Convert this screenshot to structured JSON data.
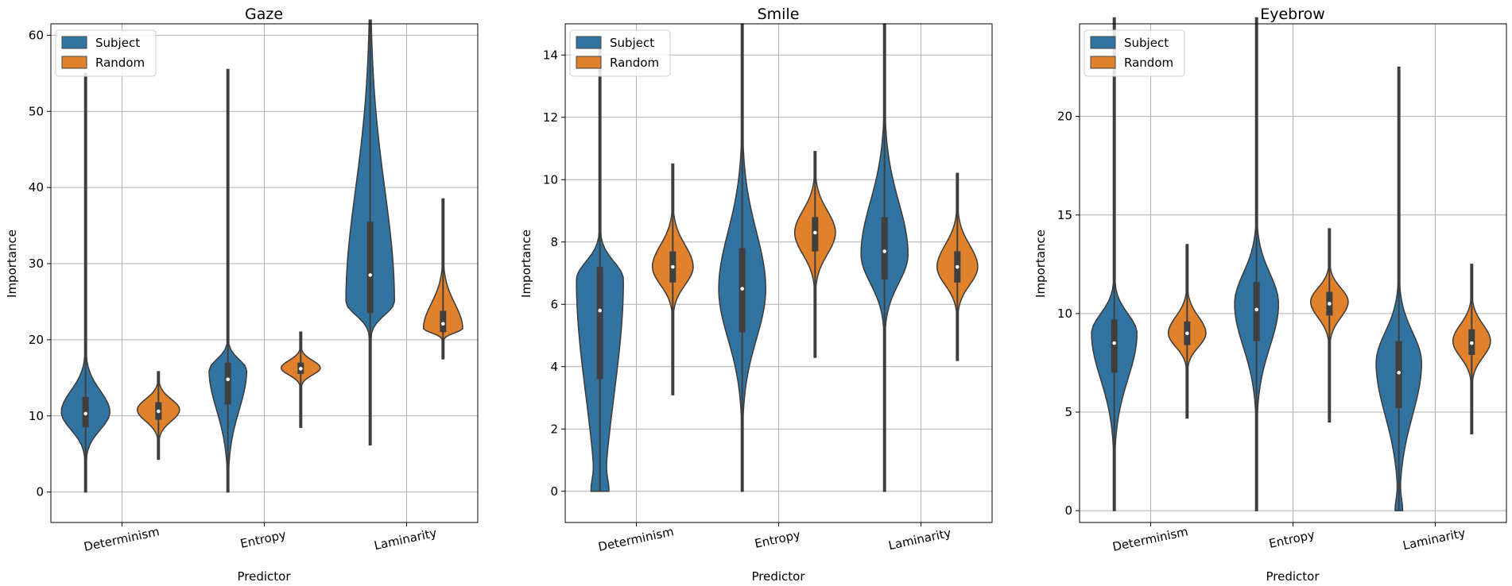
{
  "chart_data": [
    {
      "type": "violin",
      "title": "Gaze",
      "xlabel": "Predictor",
      "ylabel": "Importance",
      "categories": [
        "Determinism",
        "Entropy",
        "Laminarity"
      ],
      "ylim": [
        -4,
        61.5
      ],
      "yticks": [
        0,
        10,
        20,
        30,
        40,
        50,
        60
      ],
      "grid": true,
      "legend": {
        "placement": "top-left",
        "entries": [
          "Subject",
          "Random"
        ]
      },
      "series": [
        {
          "name": "Subject",
          "color": "#3274a1",
          "stats": [
            {
              "min": 0,
              "q1": 8.5,
              "median": 10.3,
              "q3": 12.5,
              "max": 55,
              "mode": 10.5,
              "maxWidth": 0.31
            },
            {
              "min": 0,
              "q1": 11.5,
              "median": 14.8,
              "q3": 17,
              "max": 55.5,
              "mode": 16,
              "maxWidth": 0.24
            },
            {
              "min": 6.2,
              "q1": 23.5,
              "median": 28.5,
              "q3": 35.5,
              "max": 62,
              "mode": 25,
              "maxWidth": 0.31
            }
          ]
        },
        {
          "name": "Random",
          "color": "#e1812c",
          "stats": [
            {
              "min": 4.3,
              "q1": 9.5,
              "median": 10.6,
              "q3": 11.8,
              "max": 15.8,
              "mode": 10.8,
              "maxWidth": 0.27
            },
            {
              "min": 8.5,
              "q1": 15.5,
              "median": 16.2,
              "q3": 17,
              "max": 21,
              "mode": 16.3,
              "maxWidth": 0.25
            },
            {
              "min": 17.5,
              "q1": 21,
              "median": 22.1,
              "q3": 23.8,
              "max": 38.5,
              "mode": 21.5,
              "maxWidth": 0.25
            }
          ]
        }
      ]
    },
    {
      "type": "violin",
      "title": "Smile",
      "xlabel": "Predictor",
      "ylabel": "Importance",
      "categories": [
        "Determinism",
        "Entropy",
        "Laminarity"
      ],
      "ylim": [
        -1,
        15
      ],
      "yticks": [
        0,
        2,
        4,
        6,
        8,
        10,
        12,
        14
      ],
      "grid": true,
      "legend": {
        "placement": "top-left",
        "entries": [
          "Subject",
          "Random"
        ]
      },
      "series": [
        {
          "name": "Subject",
          "color": "#3274a1",
          "stats": [
            {
              "min": 0,
              "q1": 3.6,
              "median": 5.8,
              "q3": 7.2,
              "max": 14.5,
              "mode": 6.8,
              "maxWidth": 0.3,
              "extraMode": 0.2
            },
            {
              "min": 0,
              "q1": 5.1,
              "median": 6.5,
              "q3": 7.8,
              "max": 15,
              "mode": 6.5,
              "maxWidth": 0.3
            },
            {
              "min": 0,
              "q1": 6.8,
              "median": 7.7,
              "q3": 8.8,
              "max": 15,
              "mode": 7.6,
              "maxWidth": 0.3
            }
          ]
        },
        {
          "name": "Random",
          "color": "#e1812c",
          "stats": [
            {
              "min": 3.1,
              "q1": 6.7,
              "median": 7.2,
              "q3": 7.7,
              "max": 10.5,
              "mode": 7.2,
              "maxWidth": 0.26
            },
            {
              "min": 4.3,
              "q1": 7.7,
              "median": 8.3,
              "q3": 8.8,
              "max": 10.9,
              "mode": 8.3,
              "maxWidth": 0.26
            },
            {
              "min": 4.2,
              "q1": 6.7,
              "median": 7.2,
              "q3": 7.7,
              "max": 10.2,
              "mode": 7.2,
              "maxWidth": 0.26
            }
          ]
        }
      ]
    },
    {
      "type": "violin",
      "title": "Eyebrow",
      "xlabel": "Predictor",
      "ylabel": "Importance",
      "categories": [
        "Determinism",
        "Entropy",
        "Laminarity"
      ],
      "ylim": [
        -0.6,
        24.7
      ],
      "yticks": [
        0,
        5,
        10,
        15,
        20
      ],
      "grid": true,
      "legend": {
        "placement": "top-left",
        "entries": [
          "Subject",
          "Random"
        ]
      },
      "series": [
        {
          "name": "Subject",
          "color": "#3274a1",
          "stats": [
            {
              "min": 0,
              "q1": 7,
              "median": 8.5,
              "q3": 9.7,
              "max": 25,
              "mode": 9,
              "maxWidth": 0.29
            },
            {
              "min": 0,
              "q1": 8.6,
              "median": 10.2,
              "q3": 11.6,
              "max": 25,
              "mode": 10.5,
              "maxWidth": 0.28
            },
            {
              "min": 0,
              "q1": 5.2,
              "median": 7,
              "q3": 8.6,
              "max": 22.5,
              "mode": 7.5,
              "maxWidth": 0.29,
              "extraMode": 0.15
            }
          ]
        },
        {
          "name": "Random",
          "color": "#e1812c",
          "stats": [
            {
              "min": 4.7,
              "q1": 8.4,
              "median": 9,
              "q3": 9.6,
              "max": 13.5,
              "mode": 9,
              "maxWidth": 0.24
            },
            {
              "min": 4.5,
              "q1": 9.9,
              "median": 10.5,
              "q3": 11.1,
              "max": 14.3,
              "mode": 10.6,
              "maxWidth": 0.24
            },
            {
              "min": 3.9,
              "q1": 7.9,
              "median": 8.5,
              "q3": 9.2,
              "max": 12.5,
              "mode": 8.6,
              "maxWidth": 0.24
            }
          ]
        }
      ]
    }
  ]
}
